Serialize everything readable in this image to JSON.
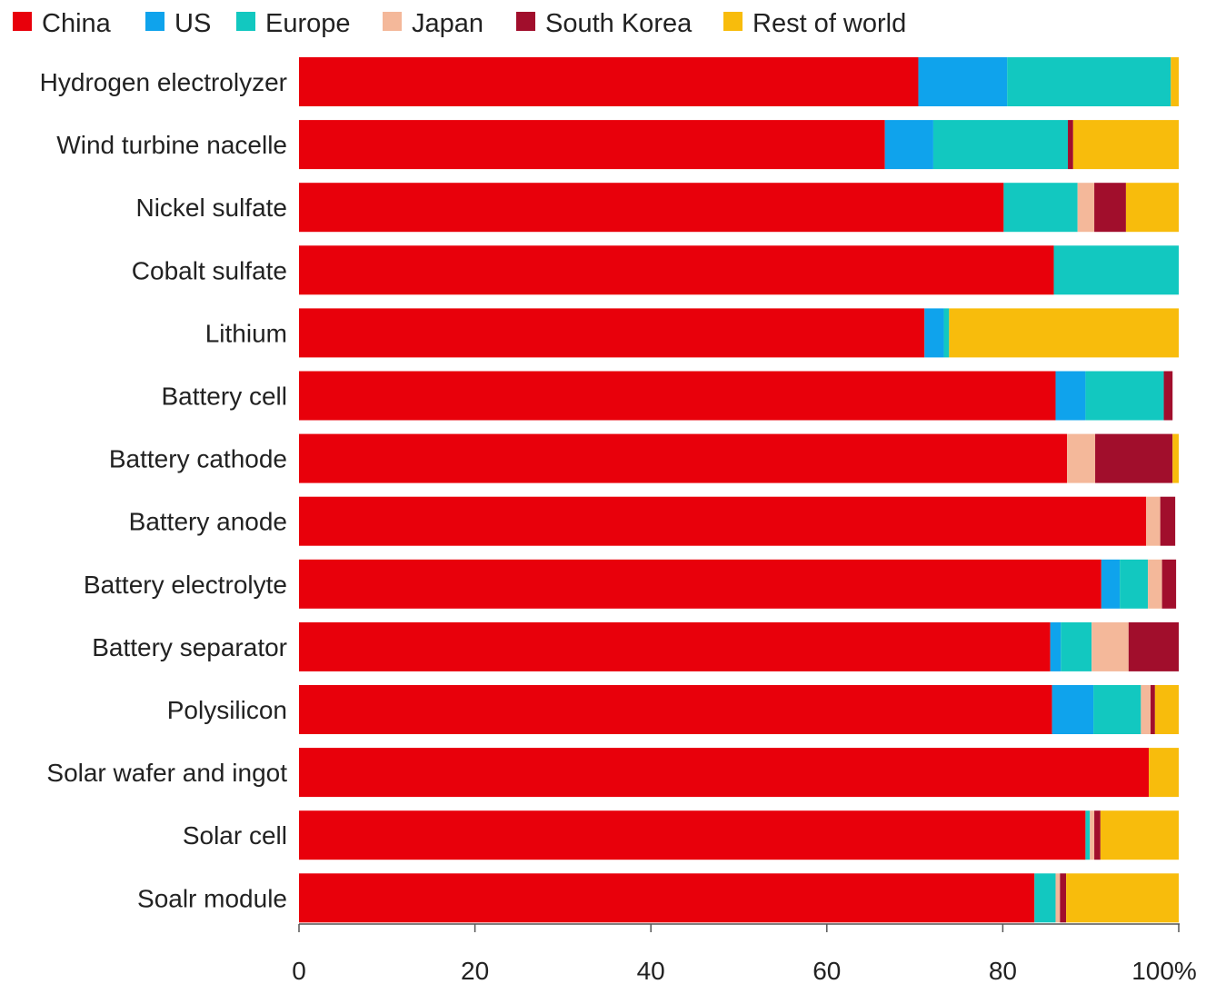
{
  "chart_data": {
    "type": "bar",
    "orientation": "horizontal",
    "stacked": true,
    "title": "",
    "xlabel": "",
    "ylabel": "",
    "xlim": [
      0,
      100
    ],
    "x_ticks": [
      "0",
      "20",
      "40",
      "60",
      "80",
      "100%"
    ],
    "legend_position": "top-left",
    "grid": false,
    "categories": [
      "Hydrogen electrolyzer",
      "Wind turbine nacelle",
      "Nickel sulfate",
      "Cobalt sulfate",
      "Lithium",
      "Battery cell",
      "Battery cathode",
      "Battery anode",
      "Battery electrolyte",
      "Battery separator",
      "Polysilicon",
      "Solar wafer and ingot",
      "Solar cell",
      "Soalr module"
    ],
    "series": [
      {
        "name": "China",
        "color": "#e8000b",
        "values": [
          70.4,
          66.6,
          80.1,
          85.8,
          71.1,
          86.0,
          87.3,
          96.3,
          91.2,
          85.4,
          85.6,
          96.6,
          89.4,
          83.6
        ]
      },
      {
        "name": "US",
        "color": "#0fa3ec",
        "values": [
          10.1,
          5.5,
          0,
          0,
          2.2,
          3.4,
          0,
          0,
          2.1,
          1.2,
          4.7,
          0,
          0,
          0
        ]
      },
      {
        "name": "Europe",
        "color": "#12c8c0",
        "values": [
          18.6,
          15.3,
          8.4,
          14.2,
          0.6,
          8.9,
          0,
          0,
          3.2,
          3.5,
          5.4,
          0,
          0.5,
          2.4
        ]
      },
      {
        "name": "Japan",
        "color": "#f4b89a",
        "values": [
          0,
          0,
          1.9,
          0,
          0,
          0,
          3.2,
          1.6,
          1.6,
          4.2,
          1.1,
          0,
          0.5,
          0.5
        ]
      },
      {
        "name": "South Korea",
        "color": "#a10e2c",
        "values": [
          0,
          0.6,
          3.6,
          0,
          0,
          1.0,
          8.8,
          1.7,
          1.6,
          5.7,
          0.5,
          0,
          0.7,
          0.7
        ]
      },
      {
        "name": "Rest of world",
        "color": "#f8bc0c",
        "values": [
          0.9,
          12.0,
          6.0,
          0,
          26.1,
          0,
          0.7,
          0,
          0,
          0,
          2.7,
          3.4,
          8.9,
          12.8
        ]
      }
    ]
  }
}
